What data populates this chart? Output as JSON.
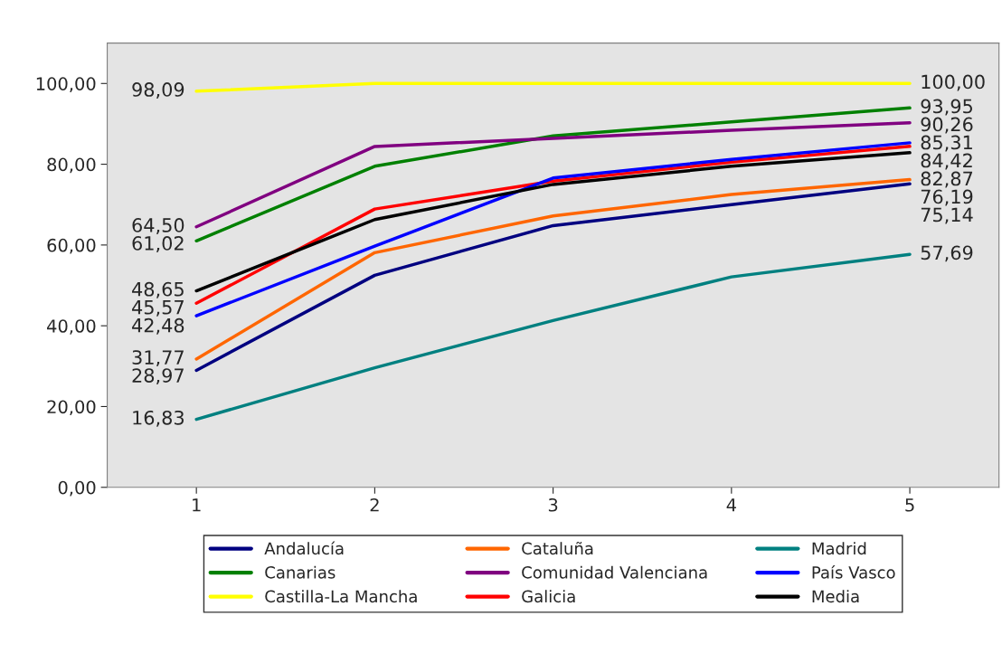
{
  "chart_data": {
    "type": "line",
    "categories": [
      "1",
      "2",
      "3",
      "4",
      "5"
    ],
    "ylim": [
      0,
      110
    ],
    "yticks": [
      {
        "value": 0,
        "label": "0,00"
      },
      {
        "value": 20,
        "label": "20,00"
      },
      {
        "value": 40,
        "label": "40,00"
      },
      {
        "value": 60,
        "label": "60,00"
      },
      {
        "value": 80,
        "label": "80,00"
      },
      {
        "value": 100,
        "label": "100,00"
      }
    ],
    "grid": false,
    "legend": "bottom",
    "marker": "none",
    "line_style": "solid",
    "series": [
      {
        "name": "Andalucía",
        "color": "#000080",
        "values": [
          28.97,
          52.5,
          64.8,
          70.0,
          75.14
        ],
        "value_labels": [
          "28,97",
          null,
          null,
          null,
          "75,14"
        ]
      },
      {
        "name": "Canarias",
        "color": "#008000",
        "values": [
          61.02,
          79.5,
          87.0,
          90.5,
          93.95
        ],
        "value_labels": [
          "61,02",
          null,
          null,
          null,
          "93,95"
        ]
      },
      {
        "name": "Castilla-La Mancha",
        "color": "#ffff00",
        "values": [
          98.09,
          100.0,
          100.0,
          100.0,
          100.0
        ],
        "value_labels": [
          "98,09",
          null,
          null,
          null,
          "100,00"
        ]
      },
      {
        "name": "Cataluña",
        "color": "#ff6600",
        "values": [
          31.77,
          58.1,
          67.2,
          72.5,
          76.19
        ],
        "value_labels": [
          "31,77",
          null,
          null,
          null,
          "76,19"
        ]
      },
      {
        "name": "Comunidad Valenciana",
        "color": "#800080",
        "values": [
          64.5,
          84.4,
          86.4,
          88.4,
          90.26
        ],
        "value_labels": [
          "64,50",
          null,
          null,
          null,
          "90,26"
        ]
      },
      {
        "name": "Galicia",
        "color": "#ff0000",
        "values": [
          45.57,
          68.9,
          75.8,
          80.5,
          84.42
        ],
        "value_labels": [
          "45,57",
          null,
          null,
          null,
          "84,42"
        ]
      },
      {
        "name": "Madrid",
        "color": "#008080",
        "values": [
          16.83,
          29.6,
          41.3,
          52.1,
          57.69
        ],
        "value_labels": [
          "16,83",
          null,
          null,
          null,
          "57,69"
        ]
      },
      {
        "name": "País Vasco",
        "color": "#0000ff",
        "values": [
          42.48,
          59.7,
          76.6,
          81.2,
          85.31
        ],
        "value_labels": [
          "42,48",
          null,
          null,
          null,
          "85,31"
        ]
      },
      {
        "name": "Media",
        "color": "#000000",
        "values": [
          48.65,
          66.3,
          75.0,
          79.5,
          82.87
        ],
        "value_labels": [
          "48,65",
          null,
          null,
          null,
          "82,87"
        ]
      }
    ]
  }
}
